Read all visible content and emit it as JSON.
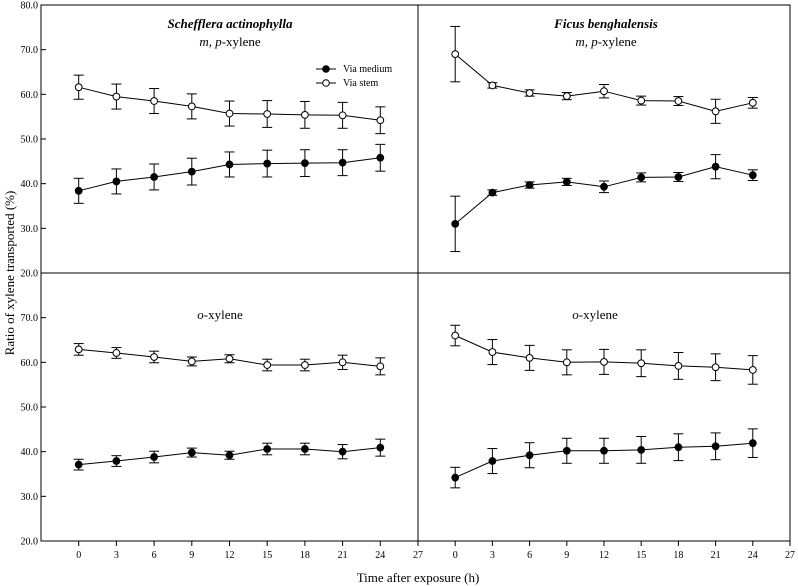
{
  "chart_data": {
    "type": "line",
    "xlabel": "Time after exposure (h)",
    "ylabel": "Ratio of xylene transported (%)",
    "x": [
      0,
      3,
      6,
      9,
      12,
      15,
      18,
      21,
      24
    ],
    "xlim": [
      -3,
      27
    ],
    "xticks": [
      "0",
      "3",
      "6",
      "9",
      "12",
      "15",
      "18",
      "21",
      "24",
      "27"
    ],
    "ylim": [
      20,
      80
    ],
    "yticks_top": [
      "20.0",
      "30.0",
      "40.0",
      "50.0",
      "60.0",
      "70.0",
      "80.0"
    ],
    "yticks_bottom": [
      "20.0",
      "30.0",
      "40.0",
      "50.0",
      "60.0",
      "70.0"
    ],
    "legend": {
      "medium": "Via medium",
      "stem": "Via stem",
      "placement": "top-right of first panel"
    },
    "panels": [
      {
        "id": "sa-mp",
        "species": "Schefflera actinophylla",
        "subtitle_italic": "m, p",
        "subtitle_rest": "-xylene",
        "medium": {
          "values": [
            38.4,
            40.5,
            41.5,
            42.7,
            44.3,
            44.5,
            44.6,
            44.7,
            45.8
          ],
          "err": [
            2.8,
            2.8,
            2.9,
            3.0,
            2.8,
            3.0,
            3.0,
            2.9,
            3.0
          ]
        },
        "stem": {
          "values": [
            61.6,
            59.5,
            58.5,
            57.3,
            55.7,
            55.6,
            55.4,
            55.3,
            54.2
          ],
          "err": [
            2.7,
            2.8,
            2.8,
            2.8,
            2.8,
            3.0,
            3.0,
            2.9,
            3.0
          ]
        }
      },
      {
        "id": "fb-mp",
        "species": "Ficus benghalensis",
        "subtitle_italic": "m, p",
        "subtitle_rest": "-xylene",
        "medium": {
          "values": [
            31.0,
            38.0,
            39.7,
            40.4,
            39.3,
            41.4,
            41.5,
            43.8,
            41.9
          ],
          "err": [
            6.2,
            0.6,
            0.7,
            0.8,
            1.3,
            1.0,
            1.0,
            2.7,
            1.2
          ]
        },
        "stem": {
          "values": [
            69.0,
            62.0,
            60.3,
            59.6,
            60.7,
            58.6,
            58.5,
            56.2,
            58.1
          ],
          "err": [
            6.2,
            0.6,
            0.7,
            0.8,
            1.5,
            1.0,
            1.0,
            2.7,
            1.2
          ]
        }
      },
      {
        "id": "sa-o",
        "species": "",
        "subtitle_italic": "o",
        "subtitle_rest": "-xylene",
        "medium": {
          "values": [
            37.1,
            37.9,
            38.8,
            39.8,
            39.2,
            40.6,
            40.6,
            40.0,
            40.9
          ],
          "err": [
            1.2,
            1.2,
            1.3,
            1.0,
            0.9,
            1.3,
            1.3,
            1.6,
            1.9
          ]
        },
        "stem": {
          "values": [
            62.9,
            62.1,
            61.2,
            60.2,
            60.8,
            59.4,
            59.4,
            60.0,
            59.1
          ],
          "err": [
            1.3,
            1.2,
            1.3,
            1.0,
            0.9,
            1.3,
            1.3,
            1.6,
            1.9
          ]
        }
      },
      {
        "id": "fb-o",
        "species": "",
        "subtitle_italic": "o",
        "subtitle_rest": "-xylene",
        "medium": {
          "values": [
            34.2,
            37.9,
            39.2,
            40.2,
            40.2,
            40.4,
            41.0,
            41.2,
            41.9
          ],
          "err": [
            2.3,
            2.8,
            2.8,
            2.8,
            2.8,
            3.0,
            3.0,
            3.0,
            3.2
          ]
        },
        "stem": {
          "values": [
            66.0,
            62.3,
            61.0,
            60.0,
            60.1,
            59.8,
            59.2,
            58.9,
            58.3
          ],
          "err": [
            2.3,
            2.8,
            2.8,
            2.8,
            2.8,
            3.0,
            3.0,
            3.0,
            3.2
          ]
        }
      }
    ]
  }
}
